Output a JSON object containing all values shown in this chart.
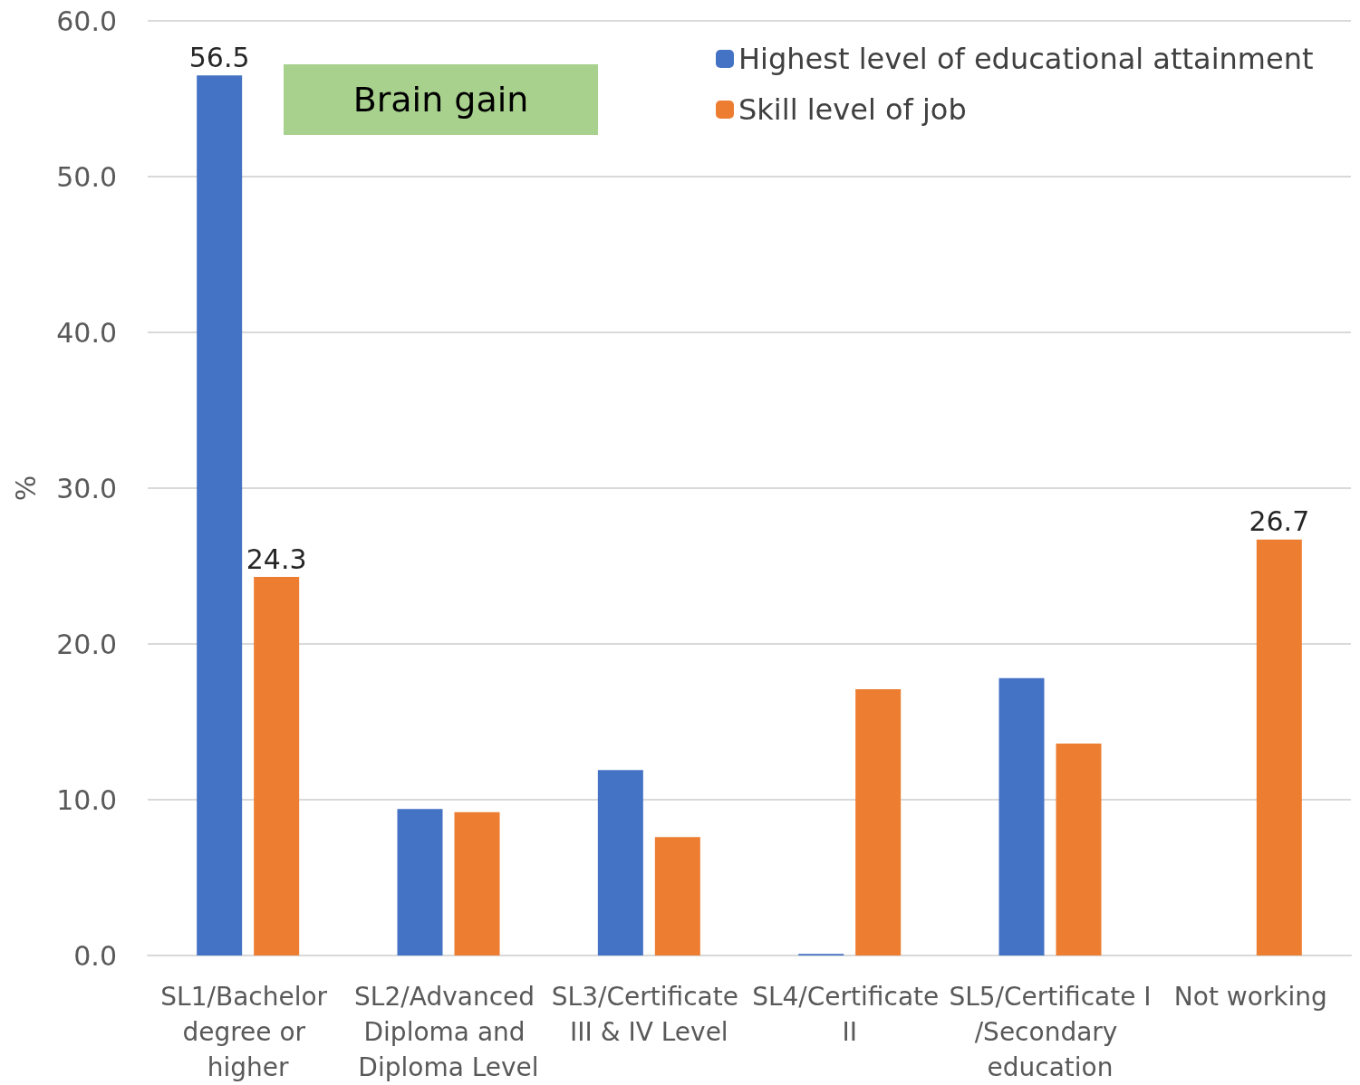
{
  "chart_data": {
    "type": "bar",
    "ylabel": "%",
    "categories": [
      "SL1/Bachelor degree or higher",
      "SL2/Advanced Diploma and Diploma Level",
      "SL3/Certificate III & IV Level",
      "SL4/Certificate II",
      "SL5/Certificate I/Secondary education",
      "Not working"
    ],
    "series": [
      {
        "name": "Highest level of educational attainment",
        "color": "#4472c4",
        "values": [
          56.5,
          9.4,
          11.9,
          0.1,
          17.8,
          null
        ],
        "value_labels": [
          "56.5",
          null,
          null,
          null,
          null,
          null
        ]
      },
      {
        "name": "Skill level of job",
        "color": "#ed7d31",
        "values": [
          24.3,
          9.2,
          7.6,
          17.1,
          13.6,
          26.7
        ],
        "value_labels": [
          "24.3",
          null,
          null,
          null,
          null,
          "26.7"
        ]
      }
    ],
    "ylim": [
      0,
      60
    ],
    "yticks": [
      {
        "value": 0,
        "label": "0.0"
      },
      {
        "value": 10,
        "label": "10.0"
      },
      {
        "value": 20,
        "label": "20.0"
      },
      {
        "value": 30,
        "label": "30.0"
      },
      {
        "value": 40,
        "label": "40.0"
      },
      {
        "value": 50,
        "label": "50.0"
      },
      {
        "value": 60,
        "label": "60.0"
      }
    ],
    "grid": "y",
    "legend": "top right",
    "annotations": [
      "Brain gain"
    ]
  }
}
